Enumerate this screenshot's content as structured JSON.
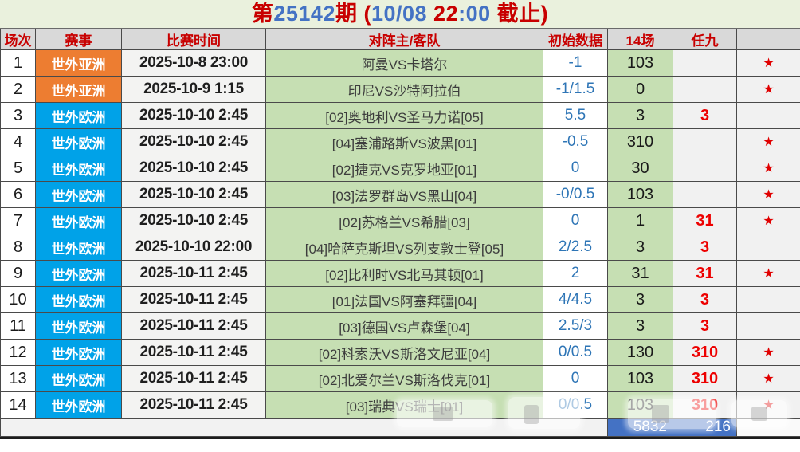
{
  "title": {
    "segments": [
      {
        "text": "第",
        "color": "red"
      },
      {
        "text": "25142",
        "color": "blue"
      },
      {
        "text": "期 (",
        "color": "red"
      },
      {
        "text": "10/08",
        "color": "blue"
      },
      {
        "text": " 22",
        "color": "red"
      },
      {
        "text": ":00",
        "color": "blue"
      },
      {
        "text": " 截止)",
        "color": "red"
      }
    ]
  },
  "columns": [
    "场次",
    "赛事",
    "比赛时间",
    "对阵主/客队",
    "初始数据",
    "14场",
    "任九",
    ""
  ],
  "star_glyph": "★",
  "rows": [
    {
      "no": "1",
      "league": "世外亚洲",
      "league_color": "orange",
      "time": "2025-10-8 23:00",
      "teams": "阿曼VS卡塔尔",
      "initial": "-1",
      "c14": "103",
      "ren9": "",
      "star": true
    },
    {
      "no": "2",
      "league": "世外亚洲",
      "league_color": "orange",
      "time": "2025-10-9 1:15",
      "teams": "印尼VS沙特阿拉伯",
      "initial": "-1/1.5",
      "c14": "0",
      "ren9": "",
      "star": true
    },
    {
      "no": "3",
      "league": "世外欧洲",
      "league_color": "blue",
      "time": "2025-10-10 2:45",
      "teams": "[02]奥地利VS圣马力诺[05]",
      "initial": "5.5",
      "c14": "3",
      "ren9": "3",
      "star": false
    },
    {
      "no": "4",
      "league": "世外欧洲",
      "league_color": "blue",
      "time": "2025-10-10 2:45",
      "teams": "[04]塞浦路斯VS波黑[01]",
      "initial": "-0.5",
      "c14": "310",
      "ren9": "",
      "star": true
    },
    {
      "no": "5",
      "league": "世外欧洲",
      "league_color": "blue",
      "time": "2025-10-10 2:45",
      "teams": "[02]捷克VS克罗地亚[01]",
      "initial": "0",
      "c14": "30",
      "ren9": "",
      "star": true
    },
    {
      "no": "6",
      "league": "世外欧洲",
      "league_color": "blue",
      "time": "2025-10-10 2:45",
      "teams": "[03]法罗群岛VS黑山[04]",
      "initial": "-0/0.5",
      "c14": "103",
      "ren9": "",
      "star": true
    },
    {
      "no": "7",
      "league": "世外欧洲",
      "league_color": "blue",
      "time": "2025-10-10 2:45",
      "teams": "[02]苏格兰VS希腊[03]",
      "initial": "0",
      "c14": "1",
      "ren9": "31",
      "star": true
    },
    {
      "no": "8",
      "league": "世外欧洲",
      "league_color": "blue",
      "time": "2025-10-10 22:00",
      "teams": "[04]哈萨克斯坦VS列支敦士登[05]",
      "initial": "2/2.5",
      "c14": "3",
      "ren9": "3",
      "star": false
    },
    {
      "no": "9",
      "league": "世外欧洲",
      "league_color": "blue",
      "time": "2025-10-11 2:45",
      "teams": "[02]比利时VS北马其顿[01]",
      "initial": "2",
      "c14": "31",
      "ren9": "31",
      "star": true
    },
    {
      "no": "10",
      "league": "世外欧洲",
      "league_color": "blue",
      "time": "2025-10-11 2:45",
      "teams": "[01]法国VS阿塞拜疆[04]",
      "initial": "4/4.5",
      "c14": "3",
      "ren9": "3",
      "star": false
    },
    {
      "no": "11",
      "league": "世外欧洲",
      "league_color": "blue",
      "time": "2025-10-11 2:45",
      "teams": "[03]德国VS卢森堡[04]",
      "initial": "2.5/3",
      "c14": "3",
      "ren9": "3",
      "star": false
    },
    {
      "no": "12",
      "league": "世外欧洲",
      "league_color": "blue",
      "time": "2025-10-11 2:45",
      "teams": "[02]科索沃VS斯洛文尼亚[04]",
      "initial": "0/0.5",
      "c14": "130",
      "ren9": "310",
      "star": true
    },
    {
      "no": "13",
      "league": "世外欧洲",
      "league_color": "blue",
      "time": "2025-10-11 2:45",
      "teams": "[02]北爱尔兰VS斯洛伐克[01]",
      "initial": "0",
      "c14": "103",
      "ren9": "310",
      "star": true
    },
    {
      "no": "14",
      "league": "世外欧洲",
      "league_color": "blue",
      "time": "2025-10-11 2:45",
      "teams": "[03]瑞典VS瑞士[01]",
      "initial": "0/0.5",
      "c14": "103",
      "ren9": "310",
      "star": true
    }
  ],
  "summary": {
    "total_14": "5832",
    "total_ren9": "216"
  },
  "colors": {
    "title_red": "#C80000",
    "title_blue": "#4472C4",
    "header_bg": "#D9D9D9",
    "header_text": "#C80000",
    "league_asia_orange": "#ED7D31",
    "league_europe_blue": "#00A2E8",
    "teams_bg_green": "#C6DFB3",
    "initial_text_blue": "#2E75B6",
    "ren9_red": "#ED0000",
    "star_red": "#E00000",
    "summary_bg_blue": "#4472C4",
    "title_bar_bg": "#EAF1DD"
  }
}
